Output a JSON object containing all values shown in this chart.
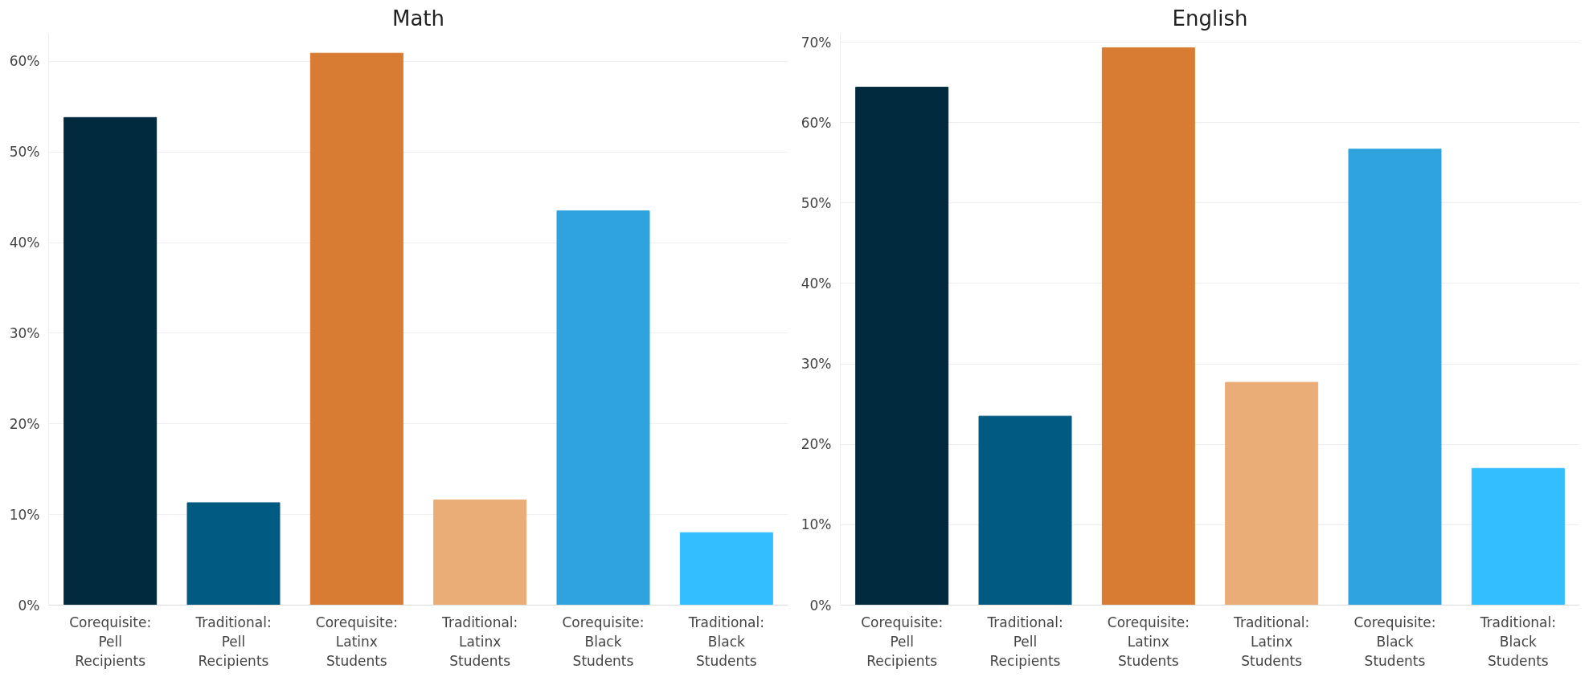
{
  "chart_data": [
    {
      "type": "bar",
      "title": "Math",
      "categories": [
        "Corequisite: Pell Recipients",
        "Traditional: Pell Recipients",
        "Corequisite: Latinx Students",
        "Traditional: Latinx Students",
        "Corequisite: Black Students",
        "Traditional: Black Students"
      ],
      "values": [
        53.8,
        11.3,
        60.9,
        11.6,
        43.5,
        8.0
      ],
      "colors": [
        "#022a3e",
        "#015a82",
        "#d87c33",
        "#ebad78",
        "#2ea3de",
        "#33bfff"
      ],
      "ylim": [
        0,
        63
      ],
      "yticks": [
        {
          "value": 0,
          "label": "0%"
        },
        {
          "value": 10,
          "label": "10%"
        },
        {
          "value": 20,
          "label": "20%"
        },
        {
          "value": 30,
          "label": "30%"
        },
        {
          "value": 40,
          "label": "40%"
        },
        {
          "value": 50,
          "label": "50%"
        },
        {
          "value": 60,
          "label": "60%"
        }
      ],
      "grid": "y"
    },
    {
      "type": "bar",
      "title": "English",
      "categories": [
        "Corequisite: Pell Recipients",
        "Traditional: Pell Recipients",
        "Corequisite: Latinx Students",
        "Traditional: Latinx Students",
        "Corequisite: Black Students",
        "Traditional: Black Students"
      ],
      "values": [
        64.4,
        23.5,
        69.3,
        27.7,
        56.7,
        17.0
      ],
      "colors": [
        "#022a3e",
        "#015a82",
        "#d87c33",
        "#ebad78",
        "#2ea3de",
        "#33bfff"
      ],
      "ylim": [
        0,
        71
      ],
      "yticks": [
        {
          "value": 0,
          "label": "0%"
        },
        {
          "value": 10,
          "label": "10%"
        },
        {
          "value": 20,
          "label": "20%"
        },
        {
          "value": 30,
          "label": "30%"
        },
        {
          "value": 40,
          "label": "40%"
        },
        {
          "value": 50,
          "label": "50%"
        },
        {
          "value": 60,
          "label": "60%"
        },
        {
          "value": 70,
          "label": "70%"
        }
      ],
      "grid": "y"
    }
  ]
}
